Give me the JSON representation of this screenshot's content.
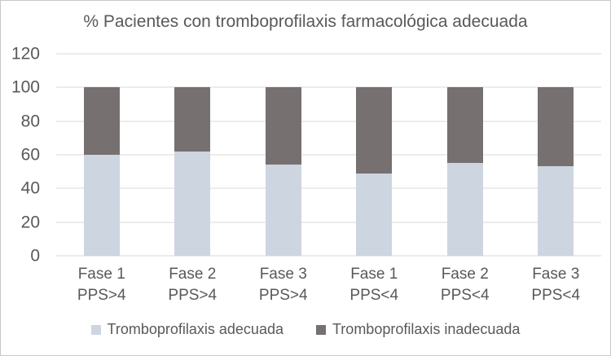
{
  "chart_data": {
    "type": "bar",
    "stacked": true,
    "title": "% Pacientes con tromboprofilaxis farmacológica adecuada",
    "categories": [
      [
        "Fase 1",
        "PPS>4"
      ],
      [
        "Fase 2",
        "PPS>4"
      ],
      [
        "Fase 3",
        "PPS>4"
      ],
      [
        "Fase 1",
        "PPS<4"
      ],
      [
        "Fase 2",
        "PPS<4"
      ],
      [
        "Fase 3",
        "PPS<4"
      ]
    ],
    "series": [
      {
        "name": "Tromboprofilaxis adecuada",
        "color": "#cdd5e0",
        "values": [
          60,
          62,
          54,
          49,
          55,
          53
        ]
      },
      {
        "name": "Tromboprofilaxis inadecuada",
        "color": "#767070",
        "values": [
          40,
          38,
          46,
          51,
          45,
          47
        ]
      }
    ],
    "ylim": [
      0,
      120
    ],
    "yticks": [
      0,
      20,
      40,
      60,
      80,
      100,
      120
    ],
    "grid": true,
    "legend_position": "bottom",
    "gridline_color": "#d9d9d9",
    "text_color": "#595959",
    "xlabel": "",
    "ylabel": ""
  }
}
